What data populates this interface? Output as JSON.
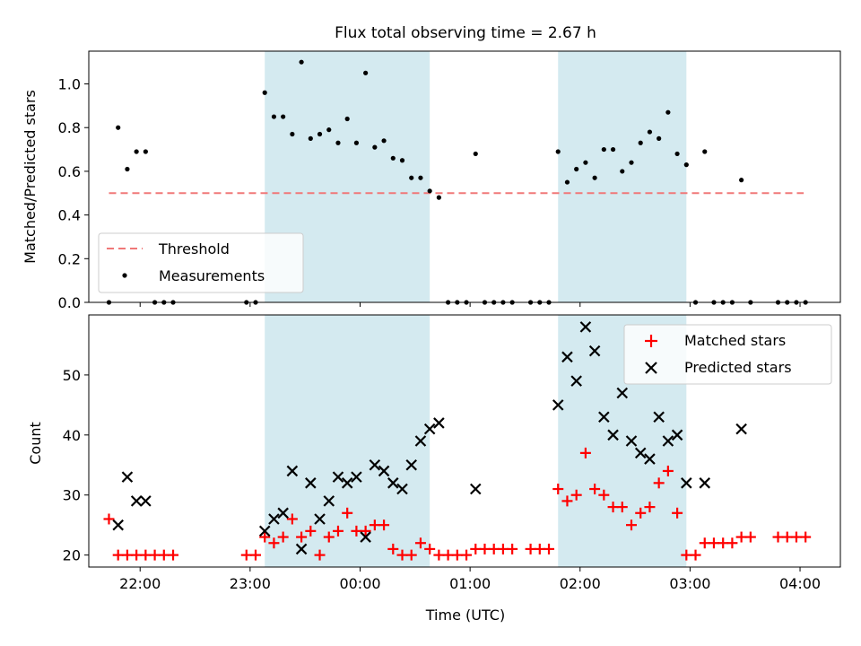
{
  "chart_data": [
    {
      "type": "scatter",
      "title": "Flux total observing time = 2.67 h",
      "xlabel": "",
      "ylabel": "Matched/Predicted stars",
      "xlim": [
        "21:32",
        "04:22"
      ],
      "ylim": [
        0,
        1.15
      ],
      "yticks": [
        "0.0",
        "0.2",
        "0.4",
        "0.6",
        "0.8",
        "1.0"
      ],
      "ytick_values": [
        0,
        0.2,
        0.4,
        0.6,
        0.8,
        1.0
      ],
      "xtick_values": [
        "22:00",
        "23:00",
        "00:00",
        "01:00",
        "02:00",
        "03:00",
        "04:00"
      ],
      "xtick_labels_visible": false,
      "legend_position": "lower-left",
      "grid": false,
      "shaded_intervals": [
        {
          "start": "23:08",
          "end": "00:38",
          "color": "#d4eaf0"
        },
        {
          "start": "01:48",
          "end": "02:58",
          "color": "#d4eaf0"
        }
      ],
      "threshold": {
        "label": "Threshold",
        "value": 0.5,
        "x_start": "21:43",
        "x_end": "04:02",
        "color": "#f07878"
      },
      "series": [
        {
          "name": "Measurements",
          "marker": "dot",
          "color": "#000000",
          "points": [
            [
              "21:43",
              0.0
            ],
            [
              "21:48",
              0.8
            ],
            [
              "21:53",
              0.61
            ],
            [
              "21:58",
              0.69
            ],
            [
              "22:03",
              0.69
            ],
            [
              "22:08",
              0.0
            ],
            [
              "22:13",
              0.0
            ],
            [
              "22:18",
              0.0
            ],
            [
              "22:58",
              0.0
            ],
            [
              "23:03",
              0.0
            ],
            [
              "23:08",
              0.96
            ],
            [
              "23:13",
              0.85
            ],
            [
              "23:18",
              0.85
            ],
            [
              "23:23",
              0.77
            ],
            [
              "23:28",
              1.1
            ],
            [
              "23:33",
              0.75
            ],
            [
              "23:38",
              0.77
            ],
            [
              "23:43",
              0.79
            ],
            [
              "23:48",
              0.73
            ],
            [
              "23:53",
              0.84
            ],
            [
              "23:58",
              0.73
            ],
            [
              "00:03",
              1.05
            ],
            [
              "00:08",
              0.71
            ],
            [
              "00:13",
              0.74
            ],
            [
              "00:18",
              0.66
            ],
            [
              "00:23",
              0.65
            ],
            [
              "00:28",
              0.57
            ],
            [
              "00:33",
              0.57
            ],
            [
              "00:38",
              0.51
            ],
            [
              "00:43",
              0.48
            ],
            [
              "00:48",
              0.0
            ],
            [
              "00:53",
              0.0
            ],
            [
              "00:58",
              0.0
            ],
            [
              "01:03",
              0.68
            ],
            [
              "01:08",
              0.0
            ],
            [
              "01:13",
              0.0
            ],
            [
              "01:18",
              0.0
            ],
            [
              "01:23",
              0.0
            ],
            [
              "01:33",
              0.0
            ],
            [
              "01:38",
              0.0
            ],
            [
              "01:43",
              0.0
            ],
            [
              "01:48",
              0.69
            ],
            [
              "01:53",
              0.55
            ],
            [
              "01:58",
              0.61
            ],
            [
              "02:03",
              0.64
            ],
            [
              "02:08",
              0.57
            ],
            [
              "02:13",
              0.7
            ],
            [
              "02:18",
              0.7
            ],
            [
              "02:23",
              0.6
            ],
            [
              "02:28",
              0.64
            ],
            [
              "02:33",
              0.73
            ],
            [
              "02:38",
              0.78
            ],
            [
              "02:43",
              0.75
            ],
            [
              "02:48",
              0.87
            ],
            [
              "02:53",
              0.68
            ],
            [
              "02:58",
              0.63
            ],
            [
              "03:03",
              0.0
            ],
            [
              "03:08",
              0.69
            ],
            [
              "03:13",
              0.0
            ],
            [
              "03:18",
              0.0
            ],
            [
              "03:23",
              0.0
            ],
            [
              "03:28",
              0.56
            ],
            [
              "03:33",
              0.0
            ],
            [
              "03:48",
              0.0
            ],
            [
              "03:53",
              0.0
            ],
            [
              "03:58",
              0.0
            ],
            [
              "04:03",
              0.0
            ]
          ]
        }
      ],
      "legend": [
        "Threshold",
        "Measurements"
      ]
    },
    {
      "type": "scatter",
      "title": "",
      "xlabel": "Time (UTC)",
      "ylabel": "Count",
      "xlim": [
        "21:32",
        "04:22"
      ],
      "ylim": [
        18,
        60
      ],
      "yticks": [
        "20",
        "30",
        "40",
        "50"
      ],
      "ytick_values": [
        20,
        30,
        40,
        50
      ],
      "xticks": [
        "22:00",
        "23:00",
        "00:00",
        "01:00",
        "02:00",
        "03:00",
        "04:00"
      ],
      "legend_position": "upper-right",
      "grid": false,
      "shaded_intervals": [
        {
          "start": "23:08",
          "end": "00:38",
          "color": "#d4eaf0"
        },
        {
          "start": "01:48",
          "end": "02:58",
          "color": "#d4eaf0"
        }
      ],
      "series": [
        {
          "name": "Matched stars",
          "marker": "plus",
          "color": "#ff0000",
          "points": [
            [
              "21:43",
              26
            ],
            [
              "21:48",
              20
            ],
            [
              "21:53",
              20
            ],
            [
              "21:58",
              20
            ],
            [
              "22:03",
              20
            ],
            [
              "22:08",
              20
            ],
            [
              "22:13",
              20
            ],
            [
              "22:18",
              20
            ],
            [
              "22:58",
              20
            ],
            [
              "23:03",
              20
            ],
            [
              "23:08",
              23
            ],
            [
              "23:13",
              22
            ],
            [
              "23:18",
              23
            ],
            [
              "23:23",
              26
            ],
            [
              "23:28",
              23
            ],
            [
              "23:33",
              24
            ],
            [
              "23:38",
              20
            ],
            [
              "23:43",
              23
            ],
            [
              "23:48",
              24
            ],
            [
              "23:53",
              27
            ],
            [
              "23:58",
              24
            ],
            [
              "00:03",
              24
            ],
            [
              "00:08",
              25
            ],
            [
              "00:13",
              25
            ],
            [
              "00:18",
              21
            ],
            [
              "00:23",
              20
            ],
            [
              "00:28",
              20
            ],
            [
              "00:33",
              22
            ],
            [
              "00:38",
              21
            ],
            [
              "00:43",
              20
            ],
            [
              "00:48",
              20
            ],
            [
              "00:53",
              20
            ],
            [
              "00:58",
              20
            ],
            [
              "01:03",
              21
            ],
            [
              "01:08",
              21
            ],
            [
              "01:13",
              21
            ],
            [
              "01:18",
              21
            ],
            [
              "01:23",
              21
            ],
            [
              "01:33",
              21
            ],
            [
              "01:38",
              21
            ],
            [
              "01:43",
              21
            ],
            [
              "01:48",
              31
            ],
            [
              "01:53",
              29
            ],
            [
              "01:58",
              30
            ],
            [
              "02:03",
              37
            ],
            [
              "02:08",
              31
            ],
            [
              "02:13",
              30
            ],
            [
              "02:18",
              28
            ],
            [
              "02:23",
              28
            ],
            [
              "02:28",
              25
            ],
            [
              "02:33",
              27
            ],
            [
              "02:38",
              28
            ],
            [
              "02:43",
              32
            ],
            [
              "02:48",
              34
            ],
            [
              "02:53",
              27
            ],
            [
              "02:58",
              20
            ],
            [
              "03:03",
              20
            ],
            [
              "03:08",
              22
            ],
            [
              "03:13",
              22
            ],
            [
              "03:18",
              22
            ],
            [
              "03:23",
              22
            ],
            [
              "03:28",
              23
            ],
            [
              "03:33",
              23
            ],
            [
              "03:48",
              23
            ],
            [
              "03:53",
              23
            ],
            [
              "03:58",
              23
            ],
            [
              "04:03",
              23
            ]
          ]
        },
        {
          "name": "Predicted stars",
          "marker": "x",
          "color": "#000000",
          "points": [
            [
              "21:48",
              25
            ],
            [
              "21:53",
              33
            ],
            [
              "21:58",
              29
            ],
            [
              "22:03",
              29
            ],
            [
              "23:08",
              24
            ],
            [
              "23:13",
              26
            ],
            [
              "23:18",
              27
            ],
            [
              "23:23",
              34
            ],
            [
              "23:28",
              21
            ],
            [
              "23:33",
              32
            ],
            [
              "23:38",
              26
            ],
            [
              "23:43",
              29
            ],
            [
              "23:48",
              33
            ],
            [
              "23:53",
              32
            ],
            [
              "23:58",
              33
            ],
            [
              "00:03",
              23
            ],
            [
              "00:08",
              35
            ],
            [
              "00:13",
              34
            ],
            [
              "00:18",
              32
            ],
            [
              "00:23",
              31
            ],
            [
              "00:28",
              35
            ],
            [
              "00:33",
              39
            ],
            [
              "00:38",
              41
            ],
            [
              "00:43",
              42
            ],
            [
              "01:03",
              31
            ],
            [
              "01:48",
              45
            ],
            [
              "01:53",
              53
            ],
            [
              "01:58",
              49
            ],
            [
              "02:03",
              58
            ],
            [
              "02:08",
              54
            ],
            [
              "02:13",
              43
            ],
            [
              "02:18",
              40
            ],
            [
              "02:23",
              47
            ],
            [
              "02:28",
              39
            ],
            [
              "02:33",
              37
            ],
            [
              "02:38",
              36
            ],
            [
              "02:43",
              43
            ],
            [
              "02:48",
              39
            ],
            [
              "02:53",
              40
            ],
            [
              "02:58",
              32
            ],
            [
              "03:08",
              32
            ],
            [
              "03:28",
              41
            ]
          ]
        }
      ],
      "legend": [
        "Matched stars",
        "Predicted stars"
      ]
    }
  ]
}
